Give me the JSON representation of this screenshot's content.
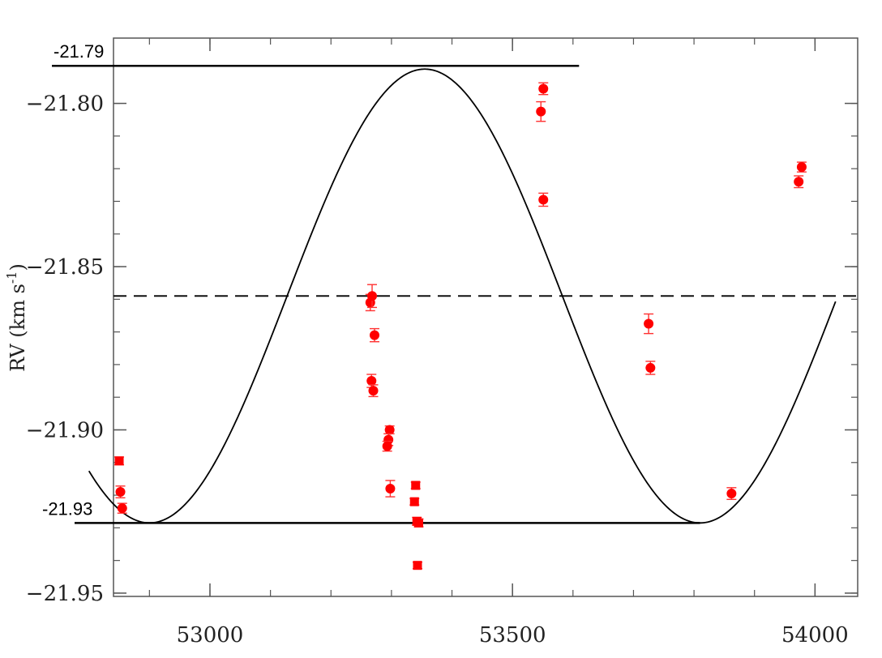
{
  "chart_data": {
    "type": "scatter",
    "title": "",
    "xlabel": "",
    "ylabel": "RV (km s",
    "ylabel_sup": "-1",
    "ylabel_close": ")",
    "xlim": [
      52720,
      54100
    ],
    "ylim": [
      -21.952,
      -21.78
    ],
    "x_ticks": [
      53000,
      53500,
      54000
    ],
    "x_tick_labels": [
      "53000",
      "53500",
      "54000"
    ],
    "y_ticks": [
      -21.8,
      -21.85,
      -21.9,
      -21.95
    ],
    "y_tick_labels": [
      "−21.80",
      "−21.85",
      "−21.90",
      "−21.95"
    ],
    "grid": false,
    "model_curve": {
      "name": "",
      "type": "sine",
      "mean": -21.859,
      "amplitude": 0.0695,
      "period": 910,
      "min_at": 52900,
      "x_range": [
        52800,
        54035
      ],
      "color": "#000000"
    },
    "reference_lines": [
      {
        "kind": "solid",
        "y": -21.7885,
        "label": "-21.79",
        "x_start": 52720,
        "x_end": 53610
      },
      {
        "kind": "solid",
        "y": -21.9285,
        "label": "-21.93",
        "x_start": 52720,
        "x_end": 53810
      },
      {
        "kind": "dashed",
        "y": -21.859,
        "label": ""
      }
    ],
    "series": [
      {
        "marker_color": "#ff0000",
        "errorbar_color": "#ff3030",
        "points": [
          {
            "x": 52850,
            "y": -21.9095,
            "err": 0.0012,
            "shape": "square"
          },
          {
            "x": 52852,
            "y": -21.919,
            "err": 0.0018,
            "shape": "circle"
          },
          {
            "x": 52855,
            "y": -21.924,
            "err": 0.0015,
            "shape": "circle"
          },
          {
            "x": 53265,
            "y": -21.861,
            "err": 0.0025,
            "shape": "circle"
          },
          {
            "x": 53268,
            "y": -21.859,
            "err": 0.0035,
            "shape": "circle"
          },
          {
            "x": 53272,
            "y": -21.871,
            "err": 0.002,
            "shape": "circle"
          },
          {
            "x": 53267,
            "y": -21.885,
            "err": 0.002,
            "shape": "circle"
          },
          {
            "x": 53270,
            "y": -21.888,
            "err": 0.0018,
            "shape": "circle"
          },
          {
            "x": 53297,
            "y": -21.9,
            "err": 0.0012,
            "shape": "circle"
          },
          {
            "x": 53295,
            "y": -21.903,
            "err": 0.0018,
            "shape": "circle"
          },
          {
            "x": 53293,
            "y": -21.905,
            "err": 0.0015,
            "shape": "circle"
          },
          {
            "x": 53298,
            "y": -21.918,
            "err": 0.0025,
            "shape": "circle"
          },
          {
            "x": 53340,
            "y": -21.917,
            "err": 0.001,
            "shape": "square"
          },
          {
            "x": 53338,
            "y": -21.922,
            "err": 0.001,
            "shape": "square"
          },
          {
            "x": 53342,
            "y": -21.928,
            "err": 0.0012,
            "shape": "square"
          },
          {
            "x": 53345,
            "y": -21.9285,
            "err": 0.0012,
            "shape": "square"
          },
          {
            "x": 53343,
            "y": -21.9415,
            "err": 0.001,
            "shape": "square"
          },
          {
            "x": 53547,
            "y": -21.8025,
            "err": 0.003,
            "shape": "circle"
          },
          {
            "x": 53551,
            "y": -21.7955,
            "err": 0.0018,
            "shape": "circle"
          },
          {
            "x": 53551,
            "y": -21.8295,
            "err": 0.002,
            "shape": "circle"
          },
          {
            "x": 53725,
            "y": -21.8675,
            "err": 0.003,
            "shape": "circle"
          },
          {
            "x": 53728,
            "y": -21.881,
            "err": 0.002,
            "shape": "circle"
          },
          {
            "x": 53862,
            "y": -21.9195,
            "err": 0.0018,
            "shape": "circle"
          },
          {
            "x": 53973,
            "y": -21.824,
            "err": 0.0018,
            "shape": "circle"
          },
          {
            "x": 53978,
            "y": -21.8195,
            "err": 0.0015,
            "shape": "circle"
          }
        ]
      }
    ]
  }
}
